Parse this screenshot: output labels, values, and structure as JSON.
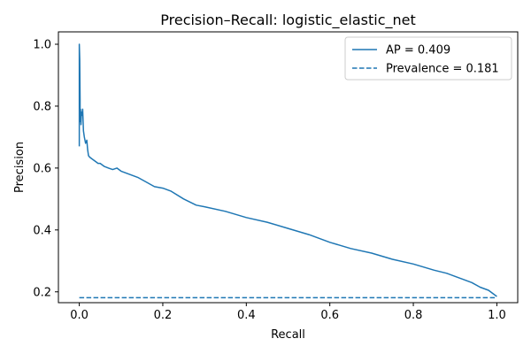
{
  "chart_data": {
    "type": "line",
    "title": "Precision–Recall: logistic_elastic_net",
    "xlabel": "Recall",
    "ylabel": "Precision",
    "xlim": [
      -0.05,
      1.05
    ],
    "ylim": [
      0.165,
      1.04
    ],
    "x_ticks": [
      0.0,
      0.2,
      0.4,
      0.6,
      0.8,
      1.0
    ],
    "x_tick_labels": [
      "0.0",
      "0.2",
      "0.4",
      "0.6",
      "0.8",
      "1.0"
    ],
    "y_ticks": [
      0.2,
      0.4,
      0.6,
      0.8,
      1.0
    ],
    "y_tick_labels": [
      "0.2",
      "0.4",
      "0.6",
      "0.8",
      "1.0"
    ],
    "grid": false,
    "legend_position": "top-right",
    "series": [
      {
        "name": "AP = 0.409",
        "style": "solid",
        "color": "#1f77b4",
        "x": [
          0.0,
          0.0,
          0.001,
          0.002,
          0.002,
          0.003,
          0.004,
          0.005,
          0.006,
          0.008,
          0.01,
          0.012,
          0.015,
          0.018,
          0.02,
          0.022,
          0.025,
          0.03,
          0.035,
          0.04,
          0.045,
          0.05,
          0.06,
          0.07,
          0.08,
          0.09,
          0.1,
          0.12,
          0.14,
          0.16,
          0.18,
          0.2,
          0.22,
          0.25,
          0.28,
          0.3,
          0.35,
          0.4,
          0.45,
          0.5,
          0.55,
          0.6,
          0.65,
          0.7,
          0.75,
          0.8,
          0.85,
          0.88,
          0.9,
          0.92,
          0.94,
          0.96,
          0.98,
          0.99,
          1.0
        ],
        "y": [
          0.67,
          1.0,
          0.95,
          0.82,
          0.75,
          0.79,
          0.74,
          0.78,
          0.77,
          0.79,
          0.72,
          0.7,
          0.68,
          0.69,
          0.66,
          0.64,
          0.635,
          0.63,
          0.625,
          0.62,
          0.615,
          0.615,
          0.605,
          0.6,
          0.595,
          0.6,
          0.59,
          0.58,
          0.57,
          0.555,
          0.54,
          0.535,
          0.525,
          0.5,
          0.48,
          0.475,
          0.46,
          0.44,
          0.425,
          0.405,
          0.385,
          0.36,
          0.34,
          0.325,
          0.305,
          0.29,
          0.27,
          0.26,
          0.25,
          0.24,
          0.23,
          0.215,
          0.205,
          0.195,
          0.185
        ]
      },
      {
        "name": "Prevalence = 0.181",
        "style": "dashed",
        "color": "#1f77b4",
        "x": [
          0.0,
          1.0
        ],
        "y": [
          0.181,
          0.181
        ]
      }
    ]
  }
}
